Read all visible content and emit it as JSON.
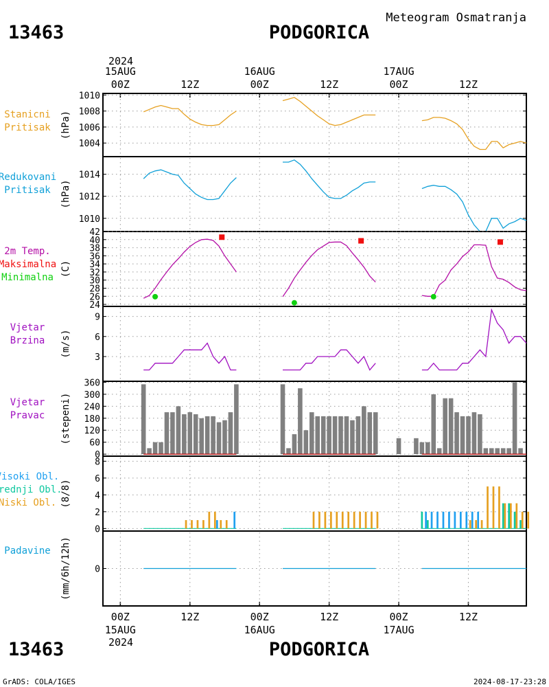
{
  "header": {
    "station_id": "13463",
    "station_name": "PODGORICA",
    "chart_title": "Meteogram Osmatranja",
    "year": "2024"
  },
  "footer": {
    "station_id": "13463",
    "station_name": "PODGORICA",
    "credit": "GrADS: COLA/IGES",
    "timestamp": "2024-08-17-23:28"
  },
  "time_axis": {
    "day_labels": [
      {
        "hour": 0,
        "time": "00Z",
        "date": "15AUG"
      },
      {
        "hour": 24,
        "time": "00Z",
        "date": "16AUG"
      },
      {
        "hour": 48,
        "time": "00Z",
        "date": "17AUG"
      }
    ],
    "midday_labels": [
      {
        "hour": 12,
        "time": "12Z"
      },
      {
        "hour": 36,
        "time": "12Z"
      },
      {
        "hour": 60,
        "time": "12Z"
      }
    ],
    "x_range_hours": [
      -3,
      70
    ]
  },
  "colors": {
    "station_pressure": "#e6a020",
    "reduced_pressure": "#10a0d8",
    "temperature": "#b40fa6",
    "tmax": "#f01010",
    "tmin": "#10d010",
    "wind": "#a010c0",
    "dir_bar": "#808080",
    "high_cloud": "#20a0f0",
    "mid_cloud": "#10c8a0",
    "low_cloud": "#e6a020",
    "precip": "#10a0d8",
    "label_station": "#e6a020",
    "label_reduced": "#10a0d8",
    "label_wind": "#a010c0",
    "label_precip": "#10a0d8"
  },
  "chart_data": [
    {
      "type": "line",
      "id": "station_pressure",
      "labels": [
        "Stanicni",
        "Pritisak"
      ],
      "label_colors": [
        "station_pressure",
        "station_pressure"
      ],
      "ylabel": "(hPa)",
      "ylim": [
        1002.3,
        1010.2
      ],
      "yticks": [
        1004,
        1006,
        1008,
        1010
      ],
      "series": [
        {
          "color": "station_pressure",
          "x": [
            4,
            5,
            6,
            7,
            8,
            9,
            10,
            11,
            12,
            13,
            14,
            15,
            16,
            17,
            18,
            19,
            20
          ],
          "y": [
            1007.9,
            1008.2,
            1008.5,
            1008.7,
            1008.5,
            1008.3,
            1008.3,
            1007.6,
            1007.0,
            1006.6,
            1006.3,
            1006.2,
            1006.2,
            1006.3,
            1006.9,
            1007.5,
            1008.0
          ]
        },
        {
          "color": "station_pressure",
          "x": [
            28,
            29,
            30,
            31,
            32,
            33,
            34,
            35,
            36,
            37,
            38,
            39,
            40,
            41,
            42,
            43,
            44
          ],
          "y": [
            1009.3,
            1009.5,
            1009.7,
            1009.2,
            1008.6,
            1008.0,
            1007.4,
            1006.9,
            1006.4,
            1006.2,
            1006.3,
            1006.6,
            1006.9,
            1007.2,
            1007.5,
            1007.5,
            1007.5
          ]
        },
        {
          "color": "station_pressure",
          "x": [
            52,
            53,
            54,
            55,
            56,
            57,
            58,
            59,
            60,
            61,
            62,
            63,
            64,
            65,
            66,
            67,
            68,
            69,
            70
          ],
          "y": [
            1006.8,
            1006.9,
            1007.2,
            1007.2,
            1007.1,
            1006.8,
            1006.4,
            1005.7,
            1004.5,
            1003.6,
            1003.2,
            1003.2,
            1004.2,
            1004.2,
            1003.4,
            1003.8,
            1004.0,
            1004.2,
            1004.0
          ]
        }
      ]
    },
    {
      "type": "line",
      "id": "reduced_pressure",
      "labels": [
        "Redukovani",
        "Pritisak"
      ],
      "label_colors": [
        "reduced_pressure",
        "reduced_pressure"
      ],
      "ylabel": "(hPa)",
      "ylim": [
        1008.8,
        1015.6
      ],
      "yticks": [
        1010,
        1012,
        1014
      ],
      "series": [
        {
          "color": "reduced_pressure",
          "x": [
            4,
            5,
            6,
            7,
            8,
            9,
            10,
            11,
            12,
            13,
            14,
            15,
            16,
            17,
            18,
            19,
            20
          ],
          "y": [
            1013.6,
            1014.1,
            1014.3,
            1014.4,
            1014.2,
            1014.0,
            1013.9,
            1013.2,
            1012.7,
            1012.2,
            1011.9,
            1011.7,
            1011.7,
            1011.8,
            1012.5,
            1013.2,
            1013.7
          ]
        },
        {
          "color": "reduced_pressure",
          "x": [
            28,
            29,
            30,
            31,
            32,
            33,
            34,
            35,
            36,
            37,
            38,
            39,
            40,
            41,
            42,
            43,
            44
          ],
          "y": [
            1015.1,
            1015.1,
            1015.3,
            1014.9,
            1014.3,
            1013.6,
            1013.0,
            1012.4,
            1011.9,
            1011.8,
            1011.8,
            1012.1,
            1012.5,
            1012.8,
            1013.2,
            1013.3,
            1013.3
          ]
        },
        {
          "color": "reduced_pressure",
          "x": [
            52,
            53,
            54,
            55,
            56,
            57,
            58,
            59,
            60,
            61,
            62,
            63,
            64,
            65,
            66,
            67,
            68,
            69,
            70
          ],
          "y": [
            1012.7,
            1012.9,
            1013.0,
            1012.9,
            1012.9,
            1012.6,
            1012.2,
            1011.5,
            1010.3,
            1009.4,
            1008.8,
            1008.8,
            1010.0,
            1010.0,
            1009.1,
            1009.5,
            1009.7,
            1010.0,
            1009.8
          ]
        }
      ]
    },
    {
      "type": "line",
      "id": "temperature",
      "labels": [
        "2m Temp.",
        "Maksimalna",
        "Minimalna"
      ],
      "label_colors": [
        "temperature",
        "tmax",
        "tmin"
      ],
      "ylabel": "(C)",
      "ylim": [
        23.5,
        42
      ],
      "yticks": [
        24,
        26,
        28,
        30,
        32,
        34,
        36,
        38,
        40,
        42
      ],
      "series": [
        {
          "color": "temperature",
          "x": [
            4,
            5,
            6,
            7,
            8,
            9,
            10,
            11,
            12,
            13,
            14,
            15,
            16,
            17,
            18,
            19,
            20
          ],
          "y": [
            25.5,
            26.2,
            28.0,
            30.1,
            32.0,
            33.8,
            35.3,
            36.9,
            38.3,
            39.3,
            40.0,
            40.1,
            39.8,
            38.4,
            36.0,
            34.0,
            32.0
          ]
        },
        {
          "color": "temperature",
          "x": [
            28,
            29,
            30,
            31,
            32,
            33,
            34,
            35,
            36,
            37,
            38,
            39,
            40,
            41,
            42,
            43,
            44
          ],
          "y": [
            25.9,
            28.0,
            30.5,
            32.5,
            34.4,
            36.1,
            37.5,
            38.4,
            39.3,
            39.4,
            39.4,
            38.5,
            36.7,
            35.0,
            33.2,
            31.0,
            29.5
          ]
        },
        {
          "color": "temperature",
          "x": [
            52,
            53,
            54,
            55,
            56,
            57,
            58,
            59,
            60,
            61,
            62,
            63,
            64,
            65,
            66,
            67,
            68,
            69,
            70
          ],
          "y": [
            26.2,
            26.0,
            26.0,
            28.8,
            30.0,
            32.5,
            34.0,
            35.8,
            37.0,
            38.7,
            38.7,
            38.6,
            33.3,
            30.5,
            30.2,
            29.4,
            28.3,
            27.6,
            27.4
          ]
        }
      ],
      "tmax_points": [
        {
          "x": 17.5,
          "y": 40.6
        },
        {
          "x": 41.5,
          "y": 39.7
        },
        {
          "x": 65.5,
          "y": 39.4
        }
      ],
      "tmin_points": [
        {
          "x": 6,
          "y": 25.9
        },
        {
          "x": 30,
          "y": 24.4
        },
        {
          "x": 54,
          "y": 25.9
        }
      ]
    },
    {
      "type": "line",
      "id": "wind_speed",
      "labels": [
        "Vjetar",
        "Brzina"
      ],
      "label_colors": [
        "wind",
        "wind"
      ],
      "ylabel": "(m/s)",
      "ylim": [
        -0.7,
        10.5
      ],
      "yticks": [
        3,
        6,
        9
      ],
      "series": [
        {
          "color": "wind",
          "x": [
            4,
            5,
            6,
            7,
            8,
            9,
            10,
            11,
            12,
            13,
            14,
            15,
            16,
            17,
            18,
            19,
            20
          ],
          "y": [
            1,
            1,
            2,
            2,
            2,
            2,
            3,
            4,
            4,
            4,
            4,
            5,
            3,
            2,
            3,
            1,
            1
          ]
        },
        {
          "color": "wind",
          "x": [
            28,
            29,
            30,
            31,
            32,
            33,
            34,
            35,
            36,
            37,
            38,
            39,
            40,
            41,
            42,
            43,
            44
          ],
          "y": [
            1,
            1,
            1,
            1,
            2,
            2,
            3,
            3,
            3,
            3,
            4,
            4,
            3,
            2,
            3,
            1,
            2
          ]
        },
        {
          "color": "wind",
          "x": [
            52,
            53,
            54,
            55,
            56,
            57,
            58,
            59,
            60,
            61,
            62,
            63,
            64,
            65,
            66,
            67,
            68,
            69,
            70
          ],
          "y": [
            1,
            1,
            2,
            1,
            1,
            1,
            1,
            2,
            2,
            3,
            4,
            3,
            10,
            8,
            7,
            5,
            6,
            6,
            5
          ]
        }
      ]
    },
    {
      "type": "bar",
      "id": "wind_dir",
      "labels": [
        "Vjetar",
        "Pravac"
      ],
      "label_colors": [
        "wind",
        "wind"
      ],
      "ylabel": "(stepeni)",
      "ylim": [
        -10,
        365
      ],
      "yticks": [
        0,
        60,
        120,
        180,
        240,
        300,
        360
      ],
      "bar_color": "dir_bar",
      "values": [
        {
          "x": 4,
          "v": 350
        },
        {
          "x": 5,
          "v": 30
        },
        {
          "x": 6,
          "v": 60
        },
        {
          "x": 7,
          "v": 60
        },
        {
          "x": 8,
          "v": 210
        },
        {
          "x": 9,
          "v": 210
        },
        {
          "x": 10,
          "v": 240
        },
        {
          "x": 11,
          "v": 200
        },
        {
          "x": 12,
          "v": 210
        },
        {
          "x": 13,
          "v": 200
        },
        {
          "x": 14,
          "v": 180
        },
        {
          "x": 15,
          "v": 190
        },
        {
          "x": 16,
          "v": 190
        },
        {
          "x": 17,
          "v": 160
        },
        {
          "x": 18,
          "v": 170
        },
        {
          "x": 19,
          "v": 210
        },
        {
          "x": 20,
          "v": 350
        },
        {
          "x": 28,
          "v": 350
        },
        {
          "x": 29,
          "v": 30
        },
        {
          "x": 30,
          "v": 100
        },
        {
          "x": 31,
          "v": 330
        },
        {
          "x": 32,
          "v": 120
        },
        {
          "x": 33,
          "v": 210
        },
        {
          "x": 34,
          "v": 190
        },
        {
          "x": 35,
          "v": 190
        },
        {
          "x": 36,
          "v": 190
        },
        {
          "x": 37,
          "v": 190
        },
        {
          "x": 38,
          "v": 190
        },
        {
          "x": 39,
          "v": 190
        },
        {
          "x": 40,
          "v": 170
        },
        {
          "x": 41,
          "v": 190
        },
        {
          "x": 42,
          "v": 240
        },
        {
          "x": 43,
          "v": 210
        },
        {
          "x": 44,
          "v": 210
        },
        {
          "x": 48,
          "v": 80
        },
        {
          "x": 51,
          "v": 80
        },
        {
          "x": 52,
          "v": 60
        },
        {
          "x": 53,
          "v": 60
        },
        {
          "x": 54,
          "v": 300
        },
        {
          "x": 55,
          "v": 30
        },
        {
          "x": 56,
          "v": 280
        },
        {
          "x": 57,
          "v": 280
        },
        {
          "x": 58,
          "v": 210
        },
        {
          "x": 59,
          "v": 190
        },
        {
          "x": 60,
          "v": 190
        },
        {
          "x": 61,
          "v": 210
        },
        {
          "x": 62,
          "v": 200
        },
        {
          "x": 63,
          "v": 30
        },
        {
          "x": 64,
          "v": 30
        },
        {
          "x": 65,
          "v": 30
        },
        {
          "x": 66,
          "v": 30
        },
        {
          "x": 67,
          "v": 30
        },
        {
          "x": 68,
          "v": 360
        },
        {
          "x": 69,
          "v": 30
        }
      ]
    },
    {
      "type": "bar",
      "id": "clouds",
      "labels": [
        "Visoki Obl.",
        "Srednji Obl.",
        "Niski Obl."
      ],
      "label_colors": [
        "high_cloud",
        "mid_cloud",
        "low_cloud"
      ],
      "ylabel": "(8/8)",
      "ylim": [
        -0.3,
        8.6
      ],
      "yticks": [
        0,
        2,
        4,
        6,
        8
      ],
      "high": [
        {
          "x": 17,
          "v": 1
        },
        {
          "x": 20,
          "v": 2
        },
        {
          "x": 53,
          "v": 2
        },
        {
          "x": 54,
          "v": 2
        },
        {
          "x": 55,
          "v": 2
        },
        {
          "x": 56,
          "v": 2
        },
        {
          "x": 57,
          "v": 2
        },
        {
          "x": 58,
          "v": 2
        },
        {
          "x": 59,
          "v": 2
        },
        {
          "x": 60,
          "v": 2
        },
        {
          "x": 61,
          "v": 2
        },
        {
          "x": 62,
          "v": 2
        }
      ],
      "mid": [
        {
          "x": 52,
          "v": 2
        },
        {
          "x": 53,
          "v": 1
        },
        {
          "x": 66,
          "v": 3
        },
        {
          "x": 67,
          "v": 3
        },
        {
          "x": 68,
          "v": 2
        },
        {
          "x": 69,
          "v": 1
        }
      ],
      "low": [
        {
          "x": 11,
          "v": 1
        },
        {
          "x": 12,
          "v": 1
        },
        {
          "x": 13,
          "v": 1
        },
        {
          "x": 14,
          "v": 1
        },
        {
          "x": 15,
          "v": 2
        },
        {
          "x": 16,
          "v": 2
        },
        {
          "x": 17,
          "v": 1
        },
        {
          "x": 18,
          "v": 1
        },
        {
          "x": 33,
          "v": 2
        },
        {
          "x": 34,
          "v": 2
        },
        {
          "x": 35,
          "v": 2
        },
        {
          "x": 36,
          "v": 2
        },
        {
          "x": 37,
          "v": 2
        },
        {
          "x": 38,
          "v": 2
        },
        {
          "x": 39,
          "v": 2
        },
        {
          "x": 40,
          "v": 2
        },
        {
          "x": 41,
          "v": 2
        },
        {
          "x": 42,
          "v": 2
        },
        {
          "x": 43,
          "v": 2
        },
        {
          "x": 44,
          "v": 2
        },
        {
          "x": 60,
          "v": 1
        },
        {
          "x": 61,
          "v": 1
        },
        {
          "x": 62,
          "v": 1
        },
        {
          "x": 63,
          "v": 5
        },
        {
          "x": 64,
          "v": 5
        },
        {
          "x": 65,
          "v": 5
        },
        {
          "x": 66,
          "v": 3
        },
        {
          "x": 67,
          "v": 3
        },
        {
          "x": 68,
          "v": 3
        },
        {
          "x": 69,
          "v": 2
        },
        {
          "x": 70,
          "v": 2
        }
      ],
      "baseline_ranges": [
        [
          4,
          20
        ],
        [
          28,
          44
        ],
        [
          52,
          70
        ]
      ]
    },
    {
      "type": "line",
      "id": "precip",
      "labels": [
        "Padavine"
      ],
      "label_colors": [
        "precip"
      ],
      "ylabel": "(mm/6h/12h)",
      "ylim": [
        -5,
        5
      ],
      "yticks": [
        0
      ],
      "series": [
        {
          "color": "precip",
          "x": [
            4,
            20
          ],
          "y": [
            0,
            0
          ]
        },
        {
          "color": "precip",
          "x": [
            28,
            44
          ],
          "y": [
            0,
            0
          ]
        },
        {
          "color": "precip",
          "x": [
            52,
            70
          ],
          "y": [
            0,
            0
          ]
        }
      ]
    }
  ]
}
